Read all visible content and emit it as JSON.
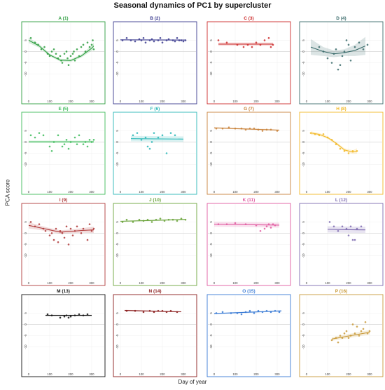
{
  "title": "Seasonal dynamics of PC1 by supercluster",
  "xlabel": "Day of year",
  "ylabel": "PCA score",
  "chart_data": {
    "type": "scatter",
    "title": "Seasonal dynamics of PC1 by supercluster",
    "xlabel": "Day of year",
    "ylabel": "PCA score",
    "xlim": [
      -20,
      350
    ],
    "ylim": [
      -22,
      12
    ],
    "x_ticks": [
      0,
      100,
      200,
      300
    ],
    "y_ticks": [
      5,
      0,
      -5,
      -10
    ],
    "y_tick_labels": [
      "5",
      "0",
      "-5",
      "-10"
    ],
    "reference_line": 0,
    "grid": true,
    "panels": [
      {
        "title": "A (1)",
        "color": "#2e9e40",
        "fit": "curve",
        "x": [
          10,
          30,
          45,
          60,
          75,
          90,
          100,
          110,
          120,
          130,
          140,
          150,
          155,
          160,
          170,
          180,
          185,
          190,
          200,
          210,
          215,
          220,
          230,
          240,
          250,
          260,
          270,
          280,
          290,
          300,
          305,
          310
        ],
        "y": [
          6,
          4,
          3,
          1,
          2,
          -1,
          -2,
          0,
          1,
          -1,
          -3,
          -2,
          -4,
          -5,
          -1,
          0,
          -3,
          -6,
          -2,
          -1,
          0,
          -4,
          1,
          -2,
          2,
          3,
          0,
          4,
          2,
          3,
          5,
          1
        ],
        "fit_x": [
          0,
          50,
          100,
          150,
          200,
          250,
          300,
          310
        ],
        "fit_y": [
          5,
          2.5,
          -1.5,
          -3.8,
          -4,
          -2,
          1.5,
          2.5
        ],
        "band": [
          1.2,
          0.8,
          0.6,
          0.6,
          0.6,
          0.7,
          1.2,
          1.5
        ]
      },
      {
        "title": "B (2)",
        "color": "#3b3b8f",
        "fit": "line",
        "x": [
          10,
          30,
          50,
          70,
          90,
          100,
          110,
          120,
          140,
          150,
          160,
          180,
          190,
          200,
          220,
          230,
          250,
          260,
          270,
          280,
          290,
          300,
          310
        ],
        "y": [
          5,
          6,
          5,
          4.5,
          5.5,
          5,
          6,
          4,
          5,
          5.5,
          4.5,
          5,
          6,
          4,
          5,
          5.5,
          5,
          4.5,
          6,
          5,
          5,
          4.5,
          5
        ],
        "fit_x": [
          0,
          310
        ],
        "fit_y": [
          5.2,
          5.1
        ],
        "band": [
          0.2,
          0.2
        ]
      },
      {
        "title": "C (3)",
        "color": "#cc2b2b",
        "fit": "line",
        "x": [
          20,
          60,
          110,
          140,
          160,
          180,
          200,
          220,
          240,
          260,
          270,
          280
        ],
        "y": [
          5,
          4,
          3,
          2,
          3,
          2,
          4,
          3,
          5,
          6,
          2,
          3
        ],
        "fit_x": [
          20,
          280
        ],
        "fit_y": [
          3.3,
          3.3
        ],
        "band": [
          0.7,
          0.7
        ]
      },
      {
        "title": "D (4)",
        "color": "#3a6b6b",
        "fit": "curve",
        "x": [
          60,
          80,
          100,
          120,
          130,
          140,
          150,
          160,
          170,
          180,
          190,
          200,
          210,
          230,
          250,
          270,
          290
        ],
        "y": [
          2,
          0,
          -3,
          -5,
          -1,
          1,
          -8,
          -6,
          -2,
          0,
          5,
          3,
          -4,
          2,
          4,
          1,
          3
        ],
        "fit_x": [
          20,
          80,
          130,
          180,
          230,
          280
        ],
        "fit_y": [
          2,
          0,
          -1,
          -0.5,
          0.5,
          2.5
        ],
        "band": [
          3.5,
          2,
          1.5,
          1.5,
          2.5,
          4
        ]
      },
      {
        "title": "E (5)",
        "color": "#3dbb5a",
        "fit": "line",
        "x": [
          10,
          30,
          50,
          70,
          100,
          110,
          120,
          140,
          160,
          170,
          180,
          190,
          200,
          220,
          230,
          240,
          260,
          270,
          280,
          290,
          300,
          310
        ],
        "y": [
          3,
          2,
          4,
          3,
          -2,
          -4,
          0,
          3,
          -2,
          -1,
          1,
          -3,
          0,
          2,
          -1,
          3,
          -1,
          0,
          -2,
          1,
          0,
          1
        ],
        "fit_x": [
          0,
          310
        ],
        "fit_y": [
          0.1,
          0.1
        ],
        "band": [
          0.5,
          0.5
        ]
      },
      {
        "title": "F (6)",
        "color": "#2ab7b7",
        "fit": "line",
        "x": [
          60,
          80,
          100,
          120,
          130,
          140,
          150,
          160,
          180,
          200,
          220,
          240,
          260
        ],
        "y": [
          3,
          4,
          1,
          2,
          -2,
          -3,
          0,
          4,
          2,
          3,
          -5,
          4,
          3
        ],
        "fit_x": [
          50,
          300
        ],
        "fit_y": [
          1.5,
          1.3
        ],
        "band": [
          1.2,
          1.2
        ]
      },
      {
        "title": "G (7)",
        "color": "#c9823a",
        "fit": "line",
        "x": [
          10,
          40,
          70,
          100,
          130,
          150,
          170,
          190,
          210,
          230,
          250,
          270,
          300
        ],
        "y": [
          6,
          6,
          6.5,
          6,
          6,
          5.5,
          6,
          6,
          5.5,
          5,
          5.5,
          5.5,
          5
        ],
        "fit_x": [
          0,
          310
        ],
        "fit_y": [
          6.3,
          5.3
        ],
        "band": [
          0.3,
          0.3
        ]
      },
      {
        "title": "H (8)",
        "color": "#f2b824",
        "fit": "curve",
        "x": [
          20,
          40,
          60,
          80,
          100,
          120,
          140,
          160,
          180,
          200,
          220,
          240
        ],
        "y": [
          4,
          3.5,
          3,
          3.5,
          2,
          1,
          -1,
          -3,
          -4,
          -5,
          -4,
          -4
        ],
        "fit_x": [
          20,
          60,
          100,
          140,
          180,
          220,
          240
        ],
        "fit_y": [
          4,
          3.4,
          2,
          -0.5,
          -3.5,
          -4.5,
          -4
        ],
        "band": [
          0.8,
          0.6,
          0.6,
          0.6,
          0.7,
          0.8,
          1.2
        ]
      },
      {
        "title": "I (9)",
        "color": "#b03a3a",
        "fit": "curve",
        "x": [
          10,
          30,
          50,
          70,
          80,
          100,
          110,
          120,
          130,
          140,
          150,
          160,
          170,
          180,
          190,
          200,
          210,
          220,
          230,
          250,
          260,
          280,
          290,
          300,
          310
        ],
        "y": [
          5,
          3,
          4,
          2,
          1,
          -1,
          0,
          -3,
          2,
          -4,
          1,
          0,
          -2,
          3,
          -5,
          2,
          -1,
          1,
          3,
          0,
          2,
          -3,
          4,
          1,
          2
        ],
        "fit_x": [
          0,
          50,
          100,
          150,
          200,
          250,
          310
        ],
        "fit_y": [
          3.5,
          2.5,
          1.5,
          0.5,
          0.8,
          1.2,
          1.5
        ],
        "band": [
          1.4,
          1,
          0.8,
          0.8,
          0.8,
          1,
          1.4
        ]
      },
      {
        "title": "J (10)",
        "color": "#6aa33a",
        "fit": "line",
        "x": [
          10,
          30,
          60,
          90,
          110,
          130,
          150,
          170,
          190,
          210,
          230,
          250,
          270,
          290,
          310
        ],
        "y": [
          5,
          6,
          5,
          6,
          5.5,
          6,
          5,
          6,
          6.5,
          5.5,
          6,
          6,
          5.5,
          6.5,
          6
        ],
        "fit_x": [
          0,
          310
        ],
        "fit_y": [
          5.3,
          6.1
        ],
        "band": [
          0.3,
          0.3
        ]
      },
      {
        "title": "K (11)",
        "color": "#e05aa0",
        "fit": "line",
        "x": [
          20,
          60,
          100,
          150,
          200,
          220,
          240,
          250,
          260,
          270,
          280,
          290
        ],
        "y": [
          4,
          4,
          4.5,
          4,
          3.5,
          1,
          2,
          3,
          4,
          2.5,
          4,
          3.5
        ],
        "fit_x": [
          0,
          310
        ],
        "fit_y": [
          4,
          3.6
        ],
        "band": [
          1.1,
          1.1
        ]
      },
      {
        "title": "L (12)",
        "color": "#7e6bb0",
        "fit": "line",
        "x": [
          110,
          130,
          150,
          170,
          190,
          200,
          210,
          220,
          230,
          240,
          260
        ],
        "y": [
          5,
          3,
          1,
          3,
          2,
          -1,
          3,
          -3,
          -3,
          2,
          3
        ],
        "fit_x": [
          100,
          280
        ],
        "fit_y": [
          1.7,
          1.5
        ],
        "band": [
          1.4,
          1.4
        ]
      },
      {
        "title": "M (13)",
        "color": "#111111",
        "fit": "line",
        "x": [
          90,
          110,
          150,
          170,
          180,
          190,
          200,
          220,
          240,
          260,
          280
        ],
        "y": [
          4.5,
          4,
          3,
          3.5,
          4,
          3,
          3.5,
          4,
          4.5,
          4,
          4.5
        ],
        "fit_x": [
          80,
          300
        ],
        "fit_y": [
          4,
          4
        ],
        "band": [
          0.3,
          0.3
        ]
      },
      {
        "title": "N (14)",
        "color": "#8a1c1c",
        "fit": "line",
        "x": [
          30,
          70,
          110,
          140,
          160,
          180,
          200,
          220,
          240,
          270
        ],
        "y": [
          6,
          6,
          5.5,
          6,
          5.5,
          6,
          6,
          5.5,
          6,
          5.5
        ],
        "fit_x": [
          20,
          290
        ],
        "fit_y": [
          6.2,
          5.6
        ],
        "band": [
          0.25,
          0.25
        ]
      },
      {
        "title": "O (15)",
        "color": "#3a7bd5",
        "fit": "line",
        "x": [
          10,
          40,
          80,
          110,
          130,
          150,
          170,
          190,
          210,
          230,
          250,
          270,
          290,
          310
        ],
        "y": [
          5,
          5.5,
          5,
          5,
          4.5,
          5.5,
          6,
          5,
          6,
          5.5,
          6,
          5.5,
          6,
          5.5
        ],
        "fit_x": [
          0,
          320
        ],
        "fit_y": [
          4.8,
          6
        ],
        "band": [
          0.3,
          0.3
        ]
      },
      {
        "title": "P (16)",
        "color": "#c99a3a",
        "fit": "line",
        "x": [
          120,
          140,
          150,
          160,
          170,
          180,
          190,
          200,
          210,
          220,
          230,
          240,
          250,
          260,
          270,
          280,
          290,
          300
        ],
        "y": [
          -7,
          -6,
          -8,
          -5,
          -6,
          -4,
          -3,
          -6,
          -5,
          0,
          -4,
          -1,
          -5,
          -3,
          -2,
          1,
          -4,
          -3
        ],
        "fit_x": [
          120,
          300
        ],
        "fit_y": [
          -6.5,
          -3.5
        ],
        "band": [
          0.8,
          1
        ]
      }
    ]
  }
}
